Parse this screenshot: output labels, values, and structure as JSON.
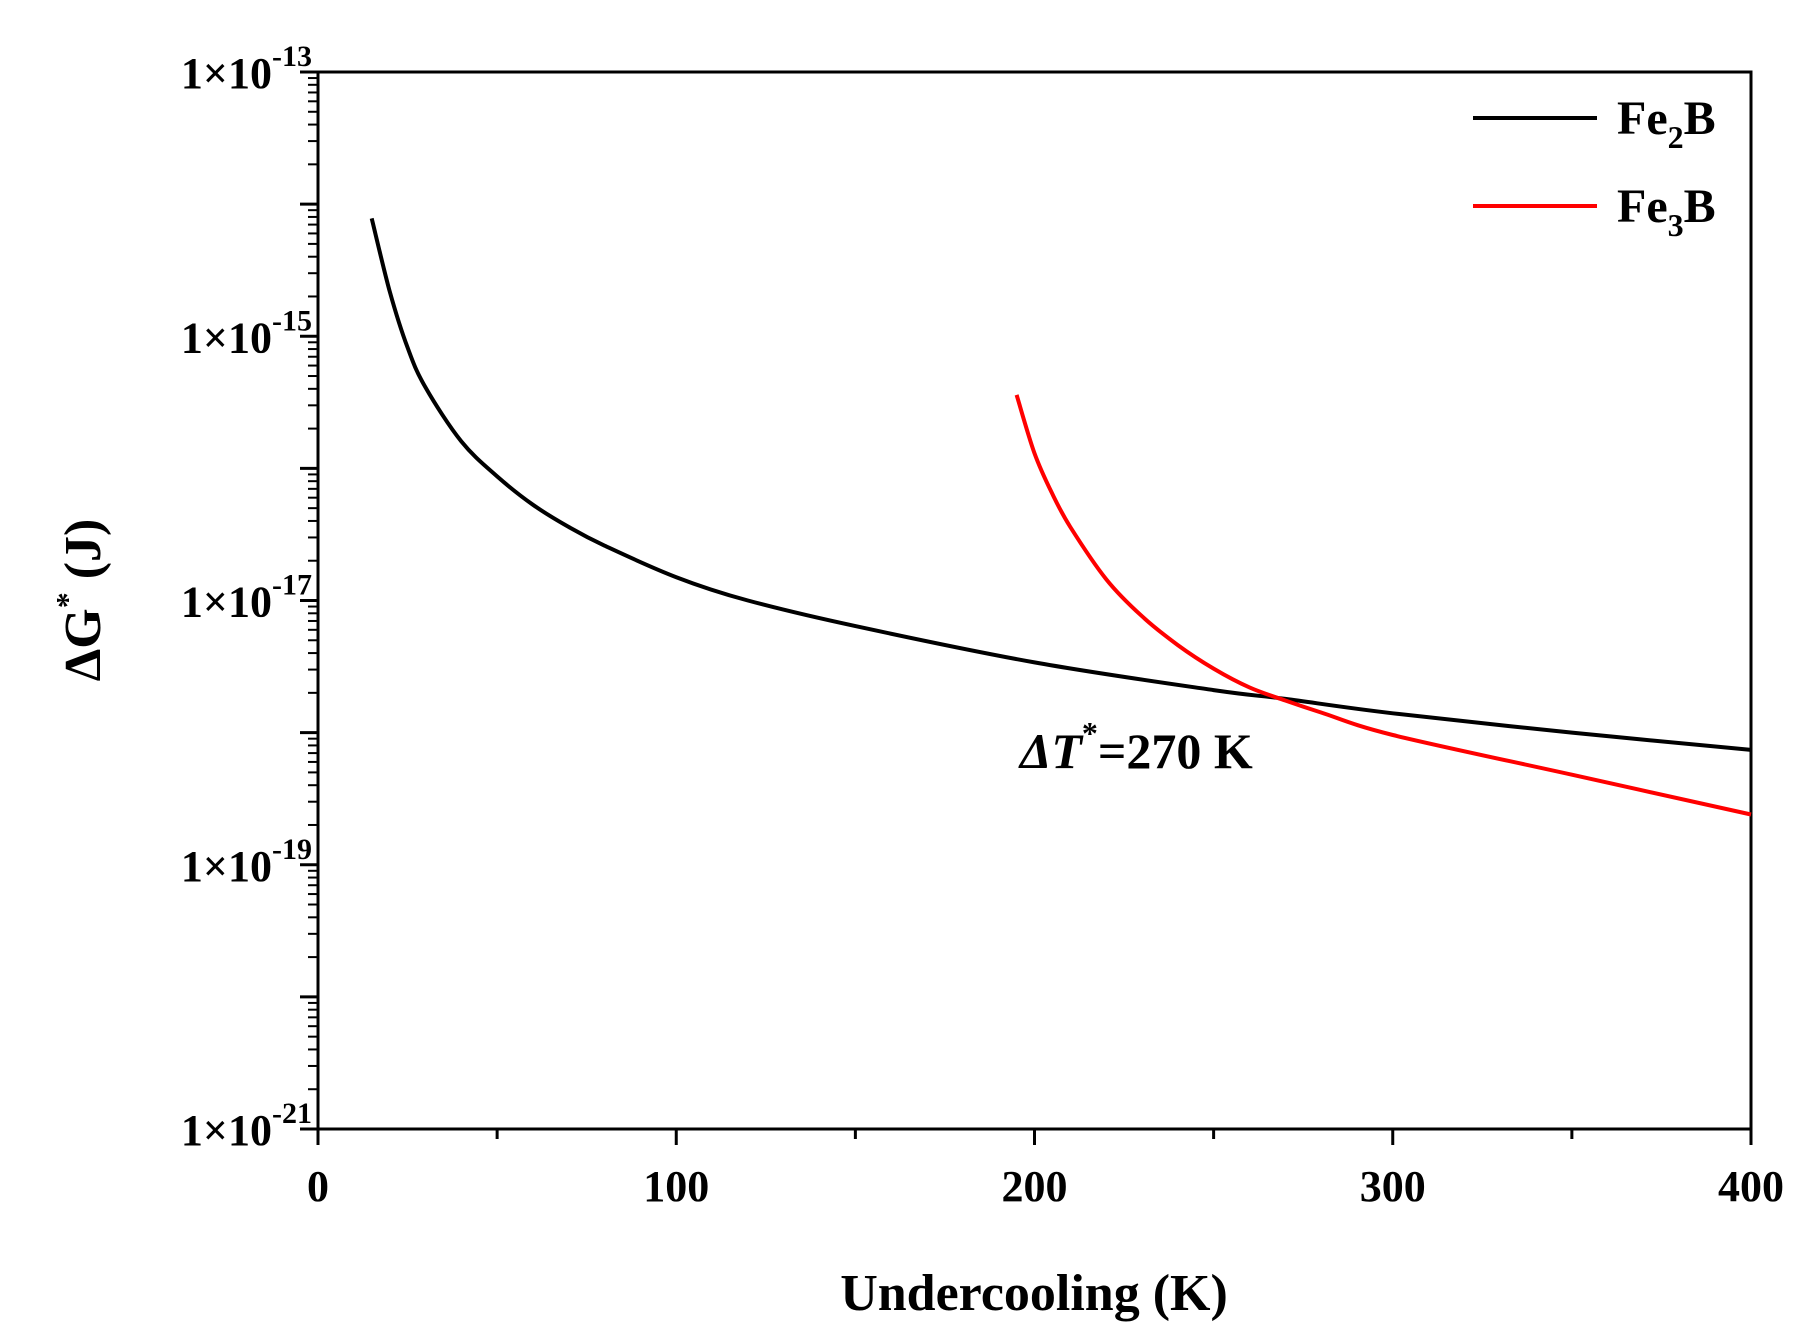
{
  "chart_data": {
    "type": "line",
    "title": "",
    "xlabel": "Undercooling (K)",
    "ylabel": {
      "prefix": "ΔG",
      "sup": "*",
      "suffix": " (J)"
    },
    "xlim": [
      0,
      400
    ],
    "ylim_exp": [
      -21,
      -13
    ],
    "yscale": "log",
    "xticks": [
      "0",
      "100",
      "200",
      "300",
      "400"
    ],
    "yticks": [
      {
        "mantissa": "1×10",
        "exp": "-13"
      },
      {
        "mantissa": "1×10",
        "exp": "-15"
      },
      {
        "mantissa": "1×10",
        "exp": "-17"
      },
      {
        "mantissa": "1×10",
        "exp": "-19"
      },
      {
        "mantissa": "1×10",
        "exp": "-21"
      }
    ],
    "series": [
      {
        "name": "Fe2B",
        "label_main": "Fe",
        "label_sub": "2",
        "label_end": "B",
        "color": "#000000",
        "x": [
          15,
          20,
          25,
          30,
          40,
          50,
          60,
          70,
          80,
          100,
          120,
          150,
          200,
          250,
          270,
          300,
          350,
          400
        ],
        "y": [
          7.8e-15,
          2.2e-15,
          8.2e-16,
          4.1e-16,
          1.6e-16,
          8.7e-17,
          5.3e-17,
          3.6e-17,
          2.6e-17,
          1.5e-17,
          1e-17,
          6.4e-18,
          3.4e-18,
          2.1e-18,
          1.8e-18,
          1.4e-18,
          1e-18,
          7.4e-19
        ]
      },
      {
        "name": "Fe3B",
        "label_main": "Fe",
        "label_sub": "3",
        "label_end": "B",
        "color": "#ff0000",
        "x": [
          195,
          200,
          205,
          210,
          220,
          230,
          240,
          250,
          260,
          270,
          280,
          300,
          350,
          400
        ],
        "y": [
          3.6e-16,
          1.3e-16,
          6.4e-17,
          3.6e-17,
          1.45e-17,
          7.6e-18,
          4.6e-18,
          3.05e-18,
          2.2e-18,
          1.75e-18,
          1.42e-18,
          9.6e-19,
          4.8e-19,
          2.4e-19
        ]
      }
    ],
    "annotation": {
      "prefix": "ΔT",
      "sup": "*",
      "suffix": "=270 K",
      "x": 270,
      "y": 1.8e-18
    },
    "legend": "top-right"
  }
}
